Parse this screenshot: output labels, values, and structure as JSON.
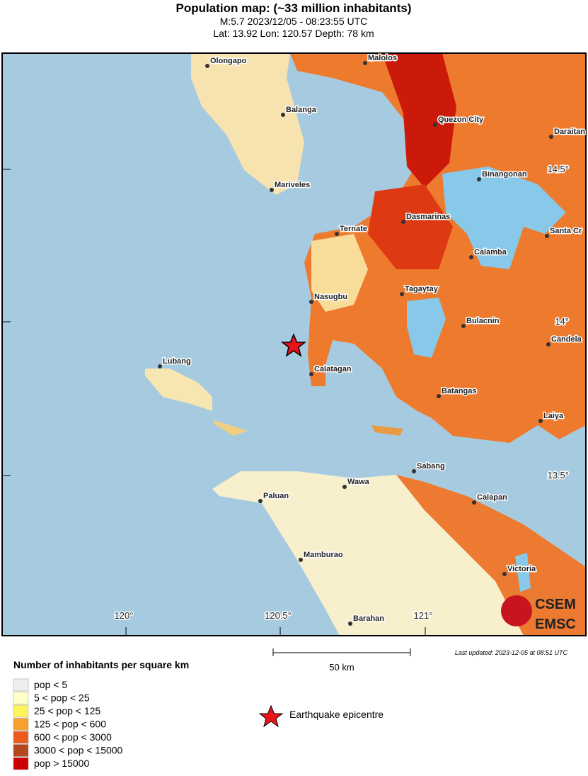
{
  "header": {
    "title": "Population map: (~33 million inhabitants)",
    "line1": "M:5.7 2023/12/05 - 08:23:55 UTC",
    "line2": "Lat: 13.92 Lon: 120.57 Depth: 78 km"
  },
  "map": {
    "lon_labels": [
      "120°",
      "120.5°",
      "121°"
    ],
    "lat_labels": [
      "14.5°",
      "14°",
      "13.5°"
    ],
    "cities": [
      "Olongapo",
      "Malolos",
      "Balanga",
      "Quezon City",
      "Daraitan",
      "Binangonan",
      "Mariveles",
      "Dasmarinas",
      "Ternate",
      "Santa Cr",
      "Calamba",
      "Tagaytay",
      "Nasugbu",
      "Bulacnin",
      "Candela",
      "Lubang",
      "Calatagan",
      "Batangas",
      "Laiya",
      "Sabang",
      "Wawa",
      "Calapan",
      "Paluan",
      "Mamburao",
      "Victoria",
      "Barahan"
    ],
    "logo": {
      "top": "CSEM",
      "bottom": "EMSC"
    }
  },
  "scale_bar": "50 km",
  "last_updated": "Last updated: 2023-12-05 at 08:51 UTC",
  "legend": {
    "title": "Number of inhabitants per square km",
    "items": [
      {
        "label": "pop < 5",
        "color": "#eeeeee"
      },
      {
        "label": "5 < pop < 25",
        "color": "#ffffc8"
      },
      {
        "label": "25 < pop < 125",
        "color": "#fff45c"
      },
      {
        "label": "125 < pop < 600",
        "color": "#f7a030"
      },
      {
        "label": "600 < pop < 3000",
        "color": "#ec5a1c"
      },
      {
        "label": "3000 < pop < 15000",
        "color": "#b4471c"
      },
      {
        "label": "pop > 15000",
        "color": "#cc0000"
      }
    ],
    "epicentre": "Earthquake epicentre"
  }
}
